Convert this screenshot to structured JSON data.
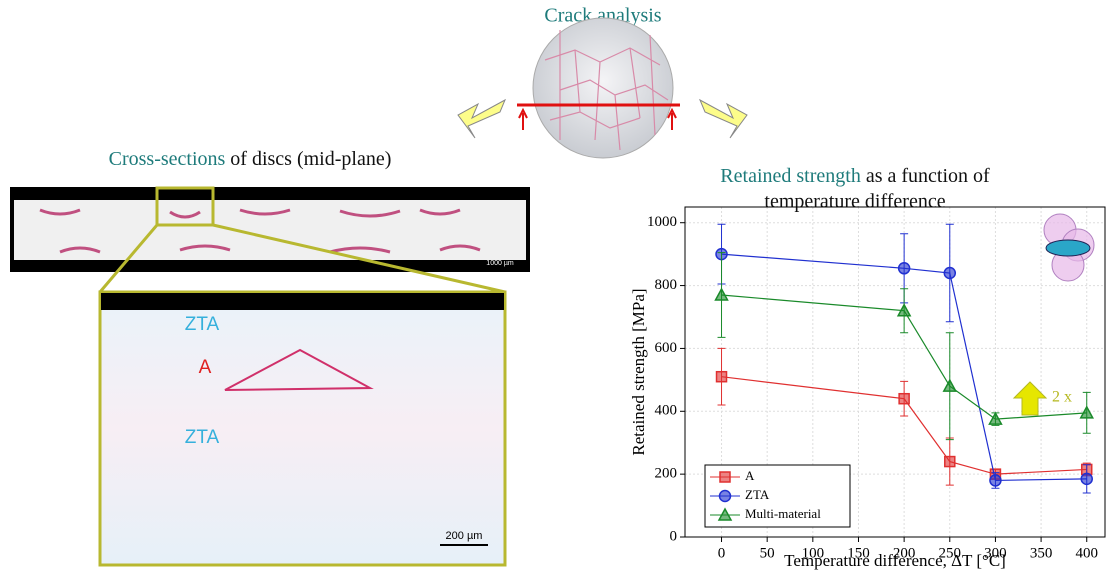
{
  "header": {
    "title": "Crack analysis"
  },
  "left": {
    "title_highlight": "Cross-sections",
    "title_rest": "of discs (mid-plane)",
    "scale_small": "1000 µm",
    "zoom_labels": [
      "ZTA",
      "A",
      "ZTA"
    ],
    "scale_large": "200 µm"
  },
  "right": {
    "title_highlight": "Retained strength",
    "title_rest": "as a function of",
    "title_line2": "temperature difference"
  },
  "chart_data": {
    "type": "line",
    "x_label": "Temperature difference, ΔT [°C]",
    "y_label": "Retained strength [MPa]",
    "x": [
      0,
      200,
      250,
      300,
      400
    ],
    "series": [
      {
        "name": "A",
        "color": "#e03030",
        "marker": "square",
        "values": [
          510,
          440,
          240,
          200,
          215
        ],
        "errors": [
          90,
          55,
          75,
          15,
          20
        ]
      },
      {
        "name": "ZTA",
        "color": "#2030d0",
        "marker": "circle",
        "values": [
          900,
          855,
          840,
          180,
          185
        ],
        "errors": [
          95,
          110,
          155,
          25,
          45
        ]
      },
      {
        "name": "Multi-material",
        "color": "#1a8a2a",
        "marker": "triangle",
        "values": [
          770,
          720,
          480,
          375,
          395
        ],
        "errors": [
          135,
          70,
          170,
          20,
          65
        ]
      }
    ],
    "xlim": [
      -40,
      420
    ],
    "xticks": [
      0,
      50,
      100,
      150,
      200,
      250,
      300,
      350,
      400
    ],
    "ylim": [
      0,
      1050
    ],
    "yticks": [
      0,
      200,
      400,
      600,
      800,
      1000
    ],
    "grid": true,
    "legend": "lower left",
    "annotation": "2 x"
  }
}
